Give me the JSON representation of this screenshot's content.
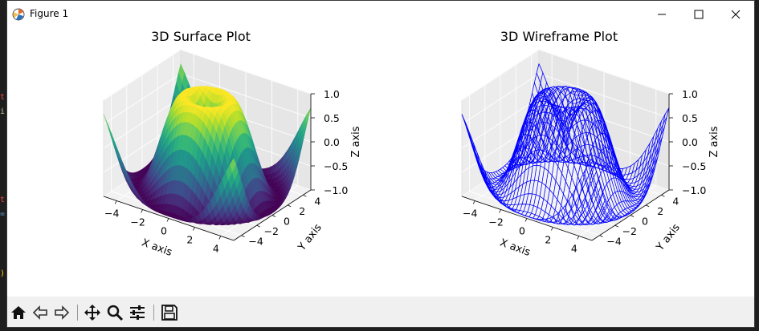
{
  "window": {
    "title": "Figure 1"
  },
  "controls": {
    "minimize_icon": "minimize-icon",
    "maximize_icon": "maximize-icon",
    "close_icon": "close-icon"
  },
  "toolbar": {
    "buttons": [
      "home-icon",
      "back-arrow-icon",
      "forward-arrow-icon",
      "pan-move-icon",
      "zoom-magnifier-icon",
      "configure-subplots-icon",
      "save-floppy-icon"
    ]
  },
  "editor_strip": {
    "chars": [
      {
        "text": "t",
        "color": "#f44747"
      },
      {
        "text": "i",
        "color": "#b5cea8"
      },
      {
        "text": "t",
        "color": "#f44747"
      },
      {
        "text": "=",
        "color": "#569cd6"
      },
      {
        "text": ")",
        "color": "#ffd700"
      }
    ]
  },
  "chart_data": [
    {
      "type": "surface",
      "title": "3D Surface Plot",
      "xlabel": "X axis",
      "ylabel": "Y axis",
      "zlabel": "Z axis",
      "x_ticks": [
        "−4",
        "−2",
        "0",
        "2",
        "4"
      ],
      "y_ticks": [
        "−4",
        "−2",
        "0",
        "2",
        "4"
      ],
      "z_ticks": [
        "−1.0",
        "−0.5",
        "0.0",
        "0.5",
        "1.0"
      ],
      "xlim": [
        -5,
        5
      ],
      "ylim": [
        -5,
        5
      ],
      "zlim": [
        -1,
        1
      ],
      "function": "z = sin(sqrt(x^2 + y^2))",
      "colormap": "viridis",
      "grid": true
    },
    {
      "type": "wireframe",
      "title": "3D Wireframe Plot",
      "xlabel": "X axis",
      "ylabel": "Y axis",
      "zlabel": "Z axis",
      "x_ticks": [
        "−4",
        "−2",
        "0",
        "2",
        "4"
      ],
      "y_ticks": [
        "−4",
        "−2",
        "0",
        "2",
        "4"
      ],
      "z_ticks": [
        "−1.0",
        "−0.5",
        "0.0",
        "0.5",
        "1.0"
      ],
      "xlim": [
        -5,
        5
      ],
      "ylim": [
        -5,
        5
      ],
      "zlim": [
        -1,
        1
      ],
      "function": "z = sin(sqrt(x^2 + y^2))",
      "color": "#0000ff",
      "grid": true
    }
  ]
}
